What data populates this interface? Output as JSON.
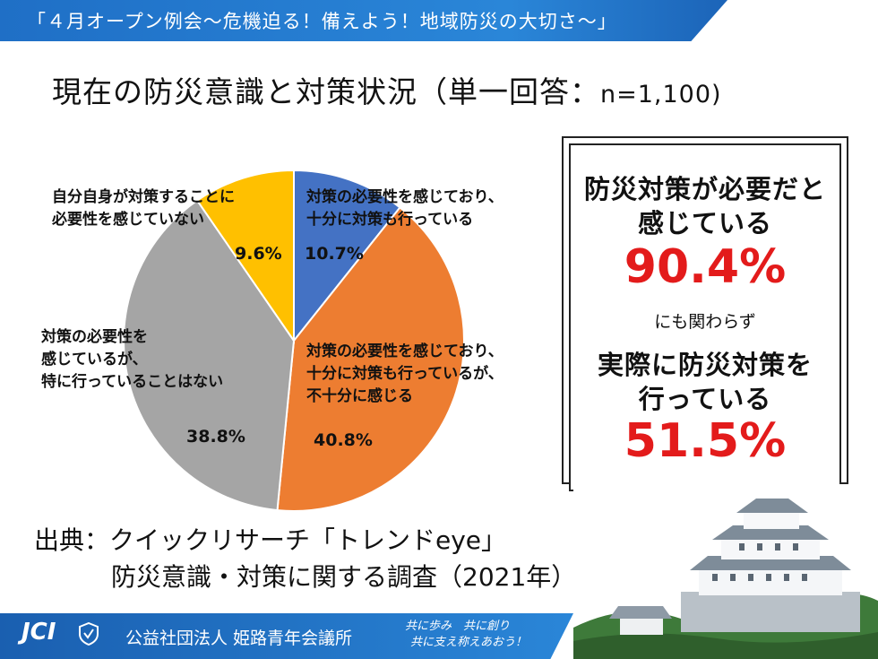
{
  "header": {
    "banner": "「４月オープン例会～危機迫る！備えよう！地域防災の大切さ～」",
    "title": "現在の防災意識と対策状況（単一回答：",
    "title_n": "n=1,100)"
  },
  "chart_data": {
    "type": "pie",
    "title": "現在の防災意識と対策状況（単一回答：n=1,100)",
    "slices": [
      {
        "label": [
          "対策の必要性を感じており、",
          "十分に対策も行っている"
        ],
        "value": 10.7,
        "value_label": "10.7%",
        "color": "#4472c4"
      },
      {
        "label": [
          "対策の必要性を感じており、",
          "十分に対策も行っているが、",
          "不十分に感じる"
        ],
        "value": 40.8,
        "value_label": "40.8%",
        "color": "#ed7d31"
      },
      {
        "label": [
          "対策の必要性を",
          "感じているが、",
          "特に行っていることはない"
        ],
        "value": 38.8,
        "value_label": "38.8%",
        "color": "#a5a5a5"
      },
      {
        "label": [
          "自分自身が対策することに",
          "必要性を感じていない"
        ],
        "value": 9.6,
        "value_label": "9.6%",
        "color": "#ffc000"
      }
    ]
  },
  "summary": {
    "line1": "防災対策が必要だと",
    "line2": "感じている",
    "pct1": "90.4%",
    "connector": "にも関わらず",
    "line3": "実際に防災対策を",
    "line4": "行っている",
    "pct2": "51.5%"
  },
  "source": {
    "line1": "出典：クイックリサーチ「トレンドeye」",
    "line2": "防災意識・対策に関する調査（2021年）"
  },
  "footer": {
    "logo": "JCI",
    "org": "公益社団法人 姫路青年会議所",
    "motto1": "共に歩み　共に創り",
    "motto2": "共に支え称えあおう！"
  }
}
